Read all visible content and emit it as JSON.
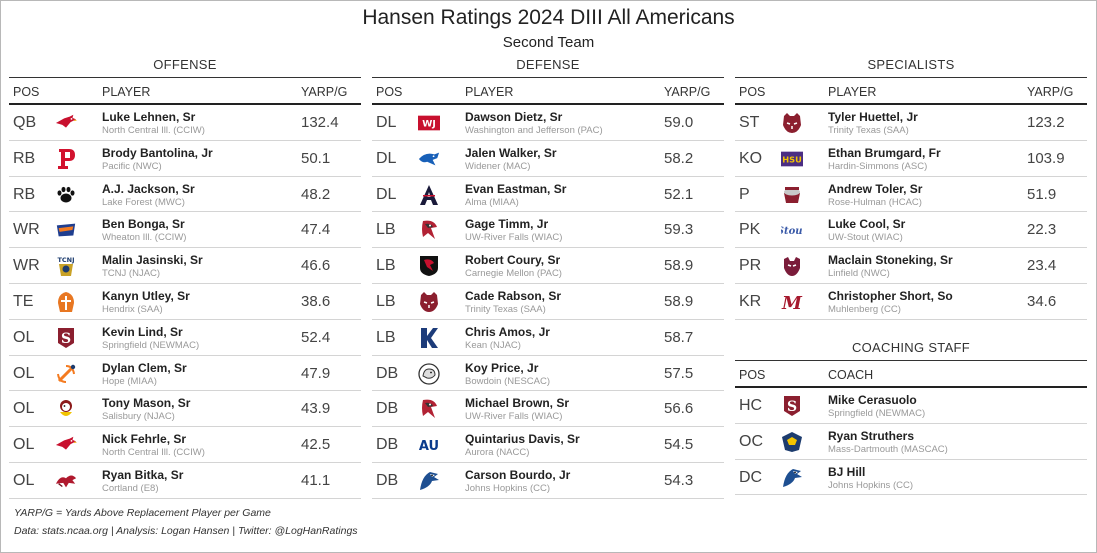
{
  "title": "Hansen Ratings 2024 DIII All Americans",
  "subtitle": "Second Team",
  "columns": {
    "pos": "POS",
    "player": "PLAYER",
    "value": "YARP/G",
    "coach": "COACH"
  },
  "offense": {
    "title": "OFFENSE",
    "rows": [
      {
        "pos": "QB",
        "name": "Luke Lehnen, Sr",
        "school": "North Central Ill. (CCIW)",
        "value": "132.4",
        "logo": "cardinal-icon"
      },
      {
        "pos": "RB",
        "name": "Brody Bantolina, Jr",
        "school": "Pacific (NWC)",
        "value": "50.1",
        "logo": "pacific-p-icon"
      },
      {
        "pos": "RB",
        "name": "A.J. Jackson, Sr",
        "school": "Lake Forest (MWC)",
        "value": "48.2",
        "logo": "paw-icon"
      },
      {
        "pos": "WR",
        "name": "Ben Bonga, Sr",
        "school": "Wheaton Ill. (CCIW)",
        "value": "47.4",
        "logo": "wheaton-icon"
      },
      {
        "pos": "WR",
        "name": "Malin Jasinski, Sr",
        "school": "TCNJ (NJAC)",
        "value": "46.6",
        "logo": "tcnj-lion-icon"
      },
      {
        "pos": "TE",
        "name": "Kanyn Utley, Sr",
        "school": "Hendrix (SAA)",
        "value": "38.6",
        "logo": "warrior-helmet-icon"
      },
      {
        "pos": "OL",
        "name": "Kevin Lind, Sr",
        "school": "Springfield (NEWMAC)",
        "value": "52.4",
        "logo": "springfield-s-icon"
      },
      {
        "pos": "OL",
        "name": "Dylan Clem, Sr",
        "school": "Hope (MIAA)",
        "value": "47.9",
        "logo": "anchor-icon"
      },
      {
        "pos": "OL",
        "name": "Tony Mason, Sr",
        "school": "Salisbury (NJAC)",
        "value": "43.9",
        "logo": "gull-icon"
      },
      {
        "pos": "OL",
        "name": "Nick Fehrle, Sr",
        "school": "North Central Ill. (CCIW)",
        "value": "42.5",
        "logo": "cardinal-icon"
      },
      {
        "pos": "OL",
        "name": "Ryan Bitka, Sr",
        "school": "Cortland (E8)",
        "value": "41.1",
        "logo": "dragon-icon"
      }
    ]
  },
  "defense": {
    "title": "DEFENSE",
    "rows": [
      {
        "pos": "DL",
        "name": "Dawson Dietz, Sr",
        "school": "Washington and Jefferson (PAC)",
        "value": "59.0",
        "logo": "wj-icon"
      },
      {
        "pos": "DL",
        "name": "Jalen Walker, Sr",
        "school": "Widener (MAC)",
        "value": "58.2",
        "logo": "pride-icon"
      },
      {
        "pos": "DL",
        "name": "Evan Eastman, Sr",
        "school": "Alma (MIAA)",
        "value": "52.1",
        "logo": "alma-a-icon"
      },
      {
        "pos": "LB",
        "name": "Gage Timm, Jr",
        "school": "UW-River Falls (WIAC)",
        "value": "59.3",
        "logo": "falcon-icon"
      },
      {
        "pos": "LB",
        "name": "Robert Coury, Sr",
        "school": "Carnegie Mellon (PAC)",
        "value": "58.9",
        "logo": "tartan-shield-icon"
      },
      {
        "pos": "LB",
        "name": "Cade Rabson, Sr",
        "school": "Trinity Texas (SAA)",
        "value": "58.9",
        "logo": "tiger-icon"
      },
      {
        "pos": "LB",
        "name": "Chris Amos, Jr",
        "school": "Kean (NJAC)",
        "value": "58.7",
        "logo": "kean-k-icon"
      },
      {
        "pos": "DB",
        "name": "Koy Price, Jr",
        "school": "Bowdoin (NESCAC)",
        "value": "57.5",
        "logo": "polar-bear-icon"
      },
      {
        "pos": "DB",
        "name": "Michael Brown, Sr",
        "school": "UW-River Falls (WIAC)",
        "value": "56.6",
        "logo": "falcon-icon"
      },
      {
        "pos": "DB",
        "name": "Quintarius Davis, Sr",
        "school": "Aurora (NACC)",
        "value": "54.5",
        "logo": "aurora-au-icon"
      },
      {
        "pos": "DB",
        "name": "Carson Bourdo, Jr",
        "school": "Johns Hopkins (CC)",
        "value": "54.3",
        "logo": "blue-jay-icon"
      }
    ]
  },
  "specialists": {
    "title": "SPECIALISTS",
    "rows": [
      {
        "pos": "ST",
        "name": "Tyler Huettel, Jr",
        "school": "Trinity Texas (SAA)",
        "value": "123.2",
        "logo": "tiger-icon"
      },
      {
        "pos": "KO",
        "name": "Ethan Brumgard, Fr",
        "school": "Hardin-Simmons (ASC)",
        "value": "103.9",
        "logo": "hsu-icon"
      },
      {
        "pos": "P",
        "name": "Andrew Toler, Sr",
        "school": "Rose-Hulman (HCAC)",
        "value": "51.9",
        "logo": "fightin-engineer-icon"
      },
      {
        "pos": "PK",
        "name": "Luke Cool, Sr",
        "school": "UW-Stout (WIAC)",
        "value": "22.3",
        "logo": "stout-script-icon"
      },
      {
        "pos": "PR",
        "name": "Maclain Stoneking, Sr",
        "school": "Linfield (NWC)",
        "value": "23.4",
        "logo": "wildcat-icon"
      },
      {
        "pos": "KR",
        "name": "Christopher Short, So",
        "school": "Muhlenberg (CC)",
        "value": "34.6",
        "logo": "muhlenberg-m-icon"
      }
    ]
  },
  "coaching": {
    "title": "COACHING STAFF",
    "rows": [
      {
        "pos": "HC",
        "name": "Mike Cerasuolo",
        "school": "Springfield (NEWMAC)",
        "logo": "springfield-s-icon"
      },
      {
        "pos": "OC",
        "name": "Ryan Struthers",
        "school": "Mass-Dartmouth (MASCAC)",
        "logo": "corsair-icon"
      },
      {
        "pos": "DC",
        "name": "BJ Hill",
        "school": "Johns Hopkins (CC)",
        "logo": "blue-jay-icon"
      }
    ]
  },
  "footnotes": {
    "definition": "YARP/G = Yards Above Replacement Player per Game",
    "credits": "Data: stats.ncaa.org | Analysis: Logan Hansen | Twitter: @LogHanRatings"
  },
  "colors": {
    "header_rule": "#222222",
    "row_rule": "#d4d4d4",
    "muted_text": "#999999"
  }
}
